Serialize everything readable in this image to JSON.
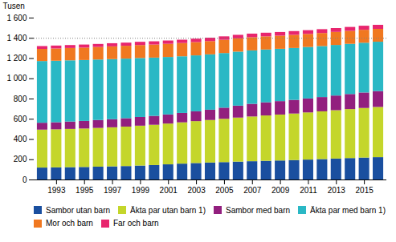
{
  "chart_data": {
    "type": "bar",
    "stacked": true,
    "x": [
      1992,
      1993,
      1994,
      1995,
      1996,
      1997,
      1998,
      1999,
      2000,
      2001,
      2002,
      2003,
      2004,
      2005,
      2006,
      2007,
      2008,
      2009,
      2010,
      2011,
      2012,
      2013,
      2014,
      2015,
      2016
    ],
    "xlim": [
      1991.4,
      2016.6
    ],
    "xticks": [
      1993,
      1995,
      1997,
      1999,
      2001,
      2003,
      2005,
      2007,
      2009,
      2011,
      2013,
      2015
    ],
    "ylabel": "Tusen",
    "ylim": [
      0,
      1600
    ],
    "yticks": [
      0,
      200,
      400,
      600,
      800,
      {
        "value": 1000,
        "label": "1 000"
      },
      {
        "value": 1200,
        "label": "1 200"
      },
      {
        "value": 1400,
        "label": "1 400"
      },
      {
        "value": 1600,
        "label": "1 600"
      }
    ],
    "hlines": [
      1400
    ],
    "legend": "bottom",
    "series": [
      {
        "name": "Sambor utan barn",
        "color": "#1a4f9f",
        "values": [
          118,
          120,
          122,
          124,
          127,
          130,
          133,
          138,
          143,
          150,
          157,
          163,
          168,
          172,
          177,
          181,
          185,
          188,
          192,
          197,
          202,
          207,
          212,
          217,
          221
        ]
      },
      {
        "name": "Äkta par utan barn 1)",
        "color": "#c4d62b",
        "values": [
          375,
          376,
          378,
          380,
          383,
          386,
          390,
          394,
          398,
          403,
          408,
          414,
          420,
          428,
          435,
          442,
          448,
          454,
          460,
          466,
          472,
          478,
          484,
          490,
          496
        ]
      },
      {
        "name": "Sambor med barn",
        "color": "#921f7e",
        "values": [
          68,
          70,
          73,
          75,
          78,
          80,
          83,
          86,
          88,
          90,
          93,
          97,
          102,
          110,
          118,
          125,
          130,
          133,
          135,
          138,
          141,
          145,
          149,
          153,
          157
        ]
      },
      {
        "name": "Äkta par med barn 1)",
        "color": "#2ab8c5",
        "values": [
          610,
          608,
          605,
          602,
          598,
          594,
          589,
          583,
          576,
          568,
          560,
          553,
          547,
          540,
          534,
          528,
          522,
          517,
          513,
          509,
          504,
          500,
          496,
          492,
          488
        ]
      },
      {
        "name": "Mor och barn",
        "color": "#f07820",
        "values": [
          120,
          121,
          122,
          123,
          124,
          126,
          127,
          128,
          129,
          130,
          131,
          131,
          131,
          131,
          131,
          131,
          130,
          130,
          130,
          129,
          129,
          129,
          128,
          128,
          127
        ]
      },
      {
        "name": "Far och barn",
        "color": "#e8256e",
        "values": [
          28,
          29,
          29,
          30,
          30,
          31,
          31,
          32,
          32,
          33,
          33,
          34,
          34,
          34,
          35,
          35,
          36,
          36,
          37,
          37,
          38,
          38,
          39,
          40,
          40
        ]
      }
    ]
  }
}
